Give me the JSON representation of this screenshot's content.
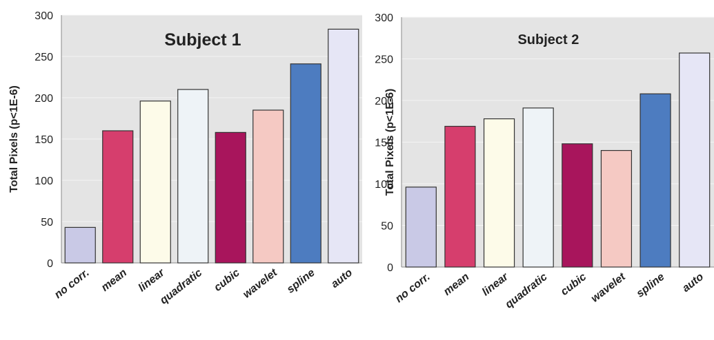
{
  "chart_data": [
    {
      "type": "bar",
      "title": "Subject 1",
      "xlabel": "",
      "ylabel": "Total Pixels (p<1E-6)",
      "ylim": [
        0,
        300
      ],
      "yticks": [
        "0",
        "50",
        "100",
        "150",
        "200",
        "250",
        "300"
      ],
      "categories": [
        "no corr.",
        "mean",
        "linear",
        "quadratic",
        "cubic",
        "wavelet",
        "spline",
        "auto"
      ],
      "values": [
        43,
        160,
        196,
        210,
        158,
        185,
        241,
        283
      ],
      "colors": [
        "#c9c9e6",
        "#d63e6d",
        "#fdfbe9",
        "#eef3f7",
        "#a8155c",
        "#f5c9c3",
        "#4d7cc0",
        "#e6e6f6"
      ],
      "grid": true,
      "legend": "none"
    },
    {
      "type": "bar",
      "title": "Subject 2",
      "xlabel": "",
      "ylabel": "Total Pixels (p<1E-6)",
      "ylim": [
        0,
        300
      ],
      "yticks": [
        "0",
        "50",
        "100",
        "150",
        "200",
        "250",
        "300"
      ],
      "categories": [
        "no corr.",
        "mean",
        "linear",
        "quadratic",
        "cubic",
        "wavelet",
        "spline",
        "auto"
      ],
      "values": [
        96,
        169,
        178,
        191,
        148,
        140,
        208,
        257
      ],
      "colors": [
        "#c9c9e6",
        "#d63e6d",
        "#fdfbe9",
        "#eef3f7",
        "#a8155c",
        "#f5c9c3",
        "#4d7cc0",
        "#e6e6f6"
      ],
      "grid": true,
      "legend": "none"
    }
  ]
}
